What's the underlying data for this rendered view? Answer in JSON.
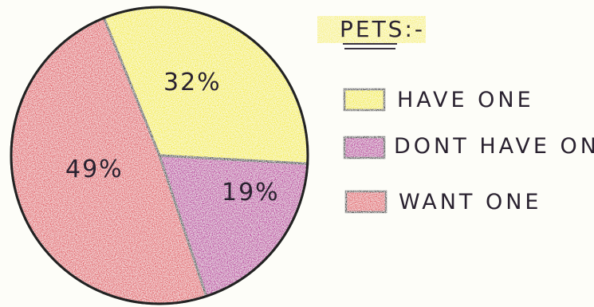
{
  "chart_data": {
    "type": "pie",
    "title": "PETS:-",
    "slices": [
      {
        "label": "HAVE ONE",
        "value": 32,
        "display": "32%",
        "color": "#f3ec3a"
      },
      {
        "label": "DONT HAVE ONE",
        "value": 19,
        "display": "19%",
        "color": "#b8319c"
      },
      {
        "label": "WANT ONE",
        "value": 49,
        "display": "49%",
        "color": "#e0575f"
      }
    ],
    "legend_position": "right"
  },
  "colors": {
    "title_highlight": "#f6f07a",
    "outline": "#222222",
    "background": "#fdfdf8"
  }
}
